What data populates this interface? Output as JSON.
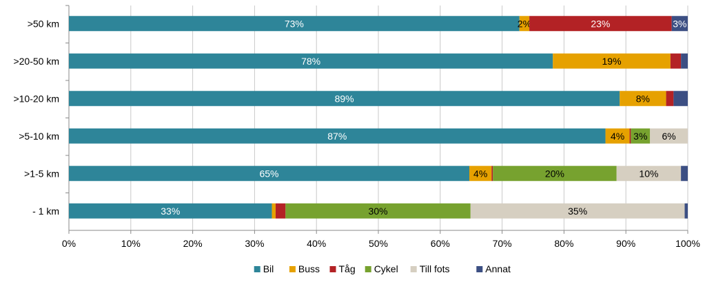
{
  "chart_data": {
    "type": "bar",
    "orientation": "horizontal",
    "stacked": true,
    "percent_stacked": true,
    "title": "",
    "xlabel": "",
    "ylabel": "",
    "xlim": [
      0,
      100
    ],
    "x_ticks": [
      "0%",
      "10%",
      "20%",
      "30%",
      "40%",
      "50%",
      "60%",
      "70%",
      "80%",
      "90%",
      "100%"
    ],
    "categories": [
      ">50 km",
      ">20-50 km",
      ">10-20 km",
      ">5-10 km",
      ">1-5 km",
      "- 1 km"
    ],
    "series": [
      {
        "name": "Bil",
        "color": "#2e8599",
        "label_color": "#ffffff",
        "values": [
          72.8,
          78.2,
          89.0,
          86.7,
          64.7,
          32.8
        ],
        "labels": [
          "73%",
          "78%",
          "89%",
          "87%",
          "65%",
          "33%"
        ]
      },
      {
        "name": "Buss",
        "color": "#e6a100",
        "label_color": "#000000",
        "values": [
          1.6,
          19.0,
          7.5,
          3.9,
          3.6,
          0.6
        ],
        "labels": [
          "2%",
          "19%",
          "8%",
          "4%",
          "4%",
          ""
        ]
      },
      {
        "name": "Tåg",
        "color": "#b32225",
        "label_color": "#ffffff",
        "values": [
          23.0,
          1.7,
          1.2,
          0.2,
          0.2,
          1.6
        ],
        "labels": [
          "23%",
          "",
          "",
          "",
          "",
          ""
        ]
      },
      {
        "name": "Cykel",
        "color": "#77a22f",
        "label_color": "#000000",
        "values": [
          0.0,
          0.0,
          0.0,
          3.1,
          20.0,
          29.9
        ],
        "labels": [
          "",
          "",
          "",
          "3%",
          "20%",
          "30%"
        ]
      },
      {
        "name": "Till fots",
        "color": "#d6cfc1",
        "label_color": "#000000",
        "values": [
          0.0,
          0.0,
          0.0,
          6.1,
          10.4,
          34.6
        ],
        "labels": [
          "",
          "",
          "",
          "6%",
          "10%",
          "35%"
        ]
      },
      {
        "name": "Annat",
        "color": "#3c4f83",
        "label_color": "#ffffff",
        "values": [
          2.6,
          1.1,
          2.3,
          0.0,
          1.1,
          0.5
        ],
        "labels": [
          "3%",
          "",
          "",
          "",
          "",
          ""
        ]
      }
    ],
    "grid": "vertical",
    "grid_color": "#c8c8c8",
    "legend_position": "bottom"
  }
}
